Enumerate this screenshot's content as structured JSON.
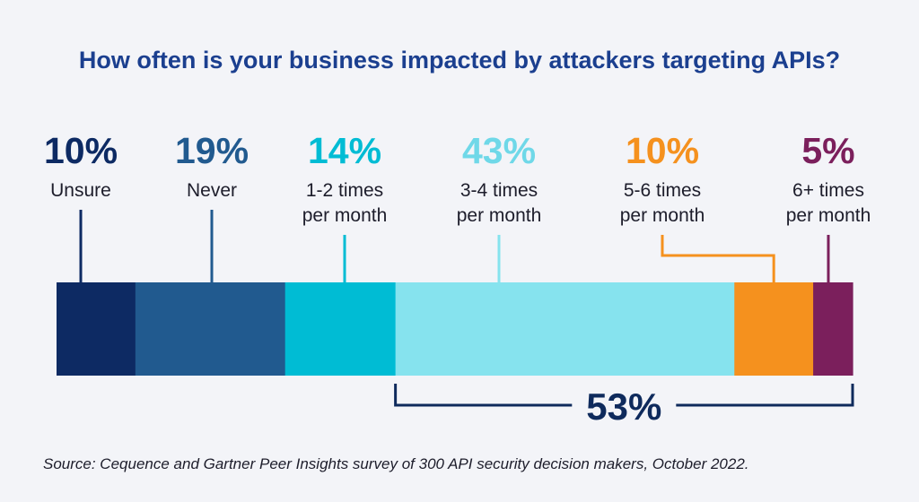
{
  "chart_data": {
    "type": "bar",
    "orientation": "horizontal-stacked",
    "title": "How often is your business impacted by attackers targeting APIs?",
    "categories": [
      "Unsure",
      "Never",
      "1-2 times\nper month",
      "3-4 times\nper month",
      "5-6 times\nper month",
      "6+ times\nper month"
    ],
    "values": [
      10,
      19,
      14,
      43,
      10,
      5
    ],
    "value_labels": [
      "10%",
      "19%",
      "14%",
      "43%",
      "10%",
      "5%"
    ],
    "colors": [
      "#0d2a63",
      "#215a8f",
      "#00bcd4",
      "#86e3ee",
      "#f5911e",
      "#7b1f5c"
    ],
    "bracket": {
      "label": "53%",
      "from_index": 3,
      "to_index": 5
    },
    "source": "Source: Cequence and Gartner Peer Insights survey of 300 API security decision makers, October 2022."
  }
}
